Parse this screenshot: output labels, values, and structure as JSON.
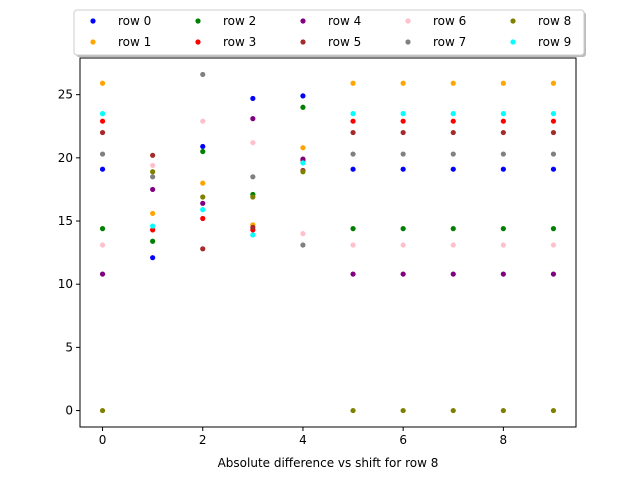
{
  "chart_data": {
    "type": "scatter",
    "title": "",
    "xlabel": "Absolute difference vs shift for row 8",
    "ylabel": "",
    "xlim": [
      -0.45,
      9.45
    ],
    "ylim": [
      -1.3,
      27.9
    ],
    "x_ticks": [
      0,
      2,
      4,
      6,
      8
    ],
    "y_ticks": [
      0,
      5,
      10,
      15,
      20,
      25
    ],
    "grid": false,
    "legend_position": "top-center",
    "x": [
      0,
      1,
      2,
      3,
      4,
      5,
      6,
      7,
      8,
      9
    ],
    "series": [
      {
        "name": "row 0",
        "color": "#0000ff",
        "values": [
          19.1,
          12.1,
          20.9,
          24.7,
          24.9,
          19.1,
          19.1,
          19.1,
          19.1,
          19.1
        ]
      },
      {
        "name": "row 1",
        "color": "#ffa500",
        "values": [
          25.9,
          15.6,
          18.0,
          14.7,
          20.8,
          25.9,
          25.9,
          25.9,
          25.9,
          25.9
        ]
      },
      {
        "name": "row 2",
        "color": "#008000",
        "values": [
          14.4,
          13.4,
          20.5,
          17.1,
          24.0,
          14.4,
          14.4,
          14.4,
          14.4,
          14.4
        ]
      },
      {
        "name": "row 3",
        "color": "#ff0000",
        "values": [
          22.9,
          14.3,
          15.2,
          14.3,
          19.8,
          22.9,
          22.9,
          22.9,
          22.9,
          22.9
        ]
      },
      {
        "name": "row 4",
        "color": "#800080",
        "values": [
          10.8,
          17.5,
          16.4,
          23.1,
          19.9,
          10.8,
          10.8,
          10.8,
          10.8,
          10.8
        ]
      },
      {
        "name": "row 5",
        "color": "#a52a2a",
        "values": [
          22.0,
          20.2,
          12.8,
          14.5,
          19.0,
          22.0,
          22.0,
          22.0,
          22.0,
          22.0
        ]
      },
      {
        "name": "row 6",
        "color": "#ffc0cb",
        "values": [
          13.1,
          19.4,
          22.9,
          21.2,
          14.0,
          13.1,
          13.1,
          13.1,
          13.1,
          13.1
        ]
      },
      {
        "name": "row 7",
        "color": "#808080",
        "values": [
          20.3,
          18.5,
          26.6,
          18.5,
          13.1,
          20.3,
          20.3,
          20.3,
          20.3,
          20.3
        ]
      },
      {
        "name": "row 8",
        "color": "#808000",
        "values": [
          0.0,
          18.9,
          16.9,
          16.9,
          18.9,
          0.0,
          0.0,
          0.0,
          0.0,
          0.0
        ]
      },
      {
        "name": "row 9",
        "color": "#00ffff",
        "values": [
          23.5,
          14.6,
          15.9,
          13.9,
          19.6,
          23.5,
          23.5,
          23.5,
          23.5,
          23.5
        ]
      }
    ]
  }
}
